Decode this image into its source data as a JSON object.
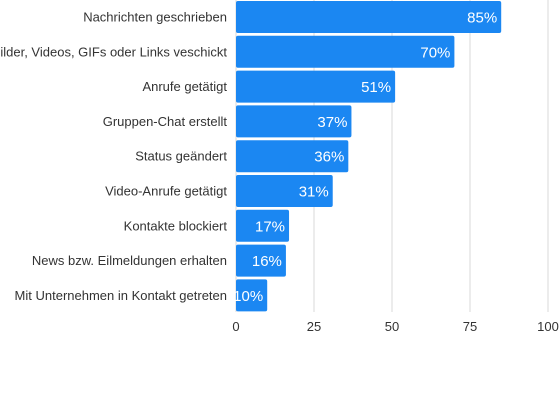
{
  "chart_data": {
    "type": "bar",
    "orientation": "horizontal",
    "categories": [
      "Nachrichten geschrieben",
      "Bilder, Videos, GIFs oder Links veschickt",
      "Anrufe getätigt",
      "Gruppen-Chat erstellt",
      "Status geändert",
      "Video-Anrufe getätigt",
      "Kontakte blockiert",
      "News bzw. Eilmeldungen erhalten",
      "Mit Unternehmen in Kontakt getreten"
    ],
    "values": [
      85,
      70,
      51,
      37,
      36,
      31,
      17,
      16,
      10
    ],
    "value_labels": [
      "85%",
      "70%",
      "51%",
      "37%",
      "36%",
      "31%",
      "17%",
      "16%",
      "10%"
    ],
    "xlim": [
      0,
      100
    ],
    "xticks": [
      0,
      25,
      50,
      75,
      100
    ],
    "xtick_labels": [
      "0",
      "25",
      "50",
      "75",
      "100"
    ],
    "grid": true,
    "bar_color": "#1b87f2",
    "title": "",
    "xlabel": "",
    "ylabel": ""
  }
}
